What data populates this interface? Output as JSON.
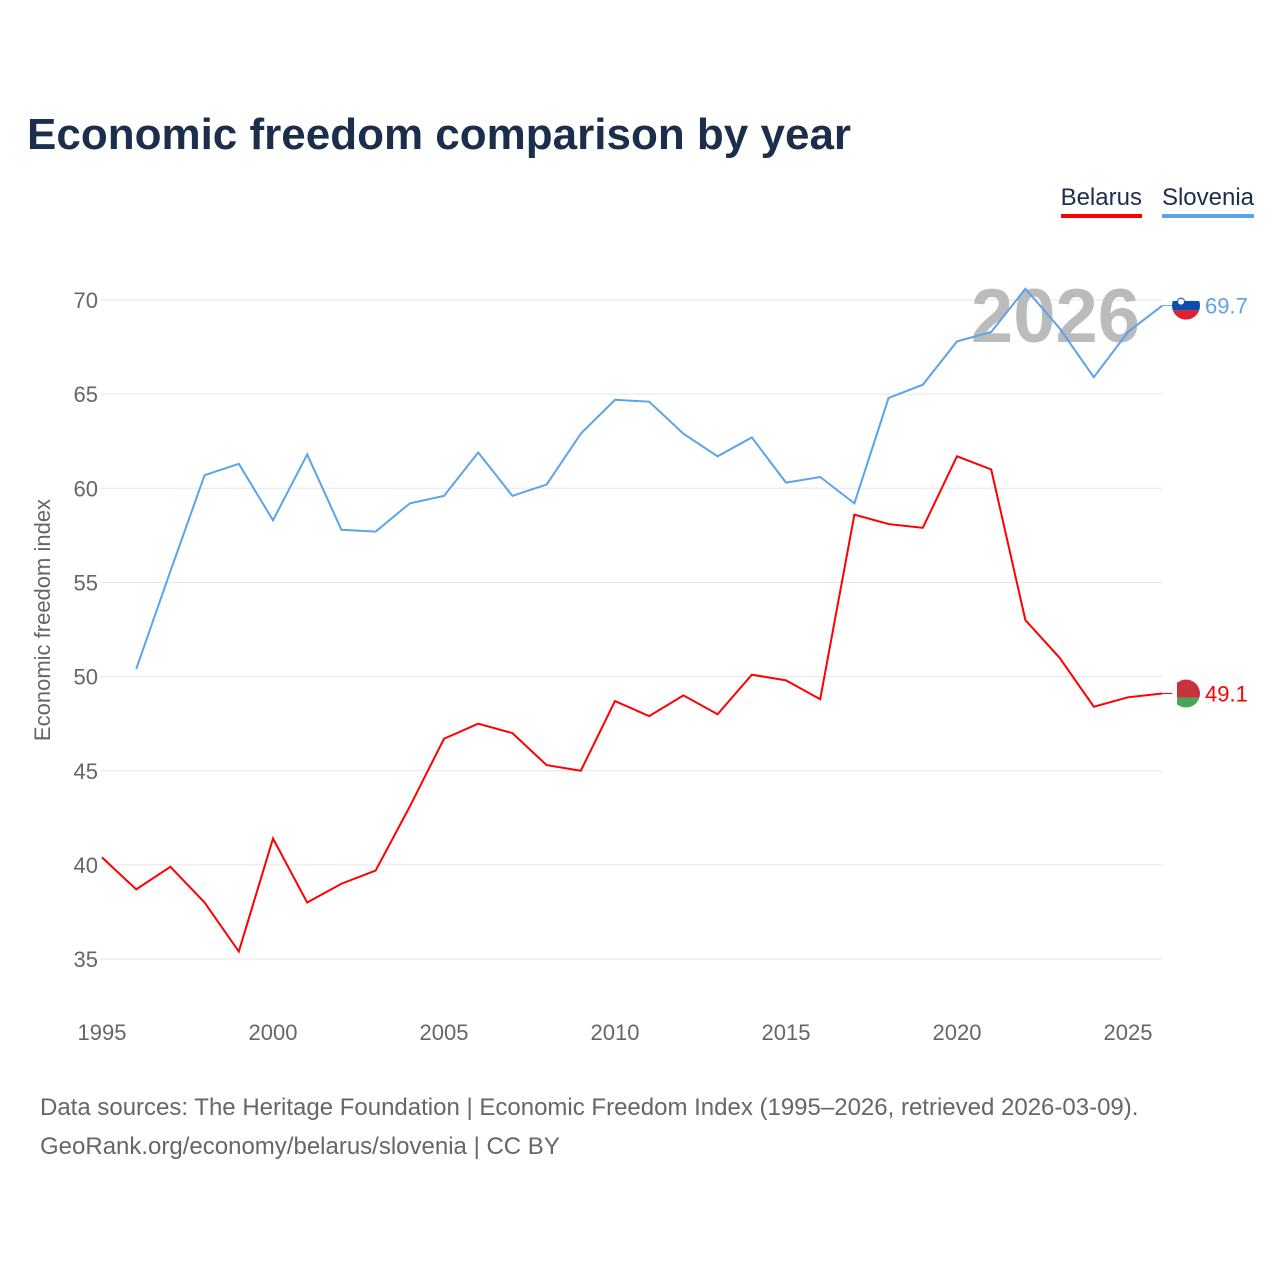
{
  "title": "Economic freedom comparison by year",
  "footer": {
    "line1": "Data sources: The Heritage Foundation | Economic Freedom Index (1995–2026, retrieved 2026-03-09).",
    "line2": "GeoRank.org/economy/belarus/slovenia | CC BY"
  },
  "chart_data": {
    "type": "line",
    "title": "Economic freedom comparison by year",
    "xlabel": "",
    "ylabel": "Economic freedom index",
    "watermark_year": "2026",
    "xlim": [
      1995,
      2026
    ],
    "ylim": [
      33,
      72
    ],
    "xticks": [
      1995,
      2000,
      2005,
      2010,
      2015,
      2020,
      2025
    ],
    "yticks": [
      35,
      40,
      45,
      50,
      55,
      60,
      65,
      70
    ],
    "grid": true,
    "legend": "top-right",
    "series": [
      {
        "name": "Belarus",
        "color": "#ff0000",
        "end_label": "49.1",
        "x": [
          1995,
          1996,
          1997,
          1998,
          1999,
          2000,
          2001,
          2002,
          2003,
          2004,
          2005,
          2006,
          2007,
          2008,
          2009,
          2010,
          2011,
          2012,
          2013,
          2014,
          2015,
          2016,
          2017,
          2018,
          2019,
          2020,
          2021,
          2022,
          2023,
          2024,
          2025,
          2026
        ],
        "values": [
          40.4,
          38.7,
          39.9,
          38.0,
          35.4,
          41.4,
          38.0,
          39.0,
          39.7,
          43.1,
          46.7,
          47.5,
          47.0,
          45.3,
          45.0,
          48.7,
          47.9,
          49.0,
          48.0,
          50.1,
          49.8,
          48.8,
          58.6,
          58.1,
          57.9,
          61.7,
          61.0,
          53.0,
          51.0,
          48.4,
          48.9,
          49.1
        ]
      },
      {
        "name": "Slovenia",
        "color": "#5ba4ea",
        "end_label": "69.7",
        "x": [
          1996,
          1997,
          1998,
          1999,
          2000,
          2001,
          2002,
          2003,
          2004,
          2005,
          2006,
          2007,
          2008,
          2009,
          2010,
          2011,
          2012,
          2013,
          2014,
          2015,
          2016,
          2017,
          2018,
          2019,
          2020,
          2021,
          2022,
          2023,
          2024,
          2025,
          2026
        ],
        "values": [
          50.4,
          55.6,
          60.7,
          61.3,
          58.3,
          61.8,
          57.8,
          57.7,
          59.2,
          59.6,
          61.9,
          59.6,
          60.2,
          62.9,
          64.7,
          64.6,
          62.9,
          61.7,
          62.7,
          60.3,
          60.6,
          59.2,
          64.8,
          65.5,
          67.8,
          68.3,
          70.6,
          68.5,
          65.9,
          68.3,
          69.7
        ]
      }
    ]
  }
}
